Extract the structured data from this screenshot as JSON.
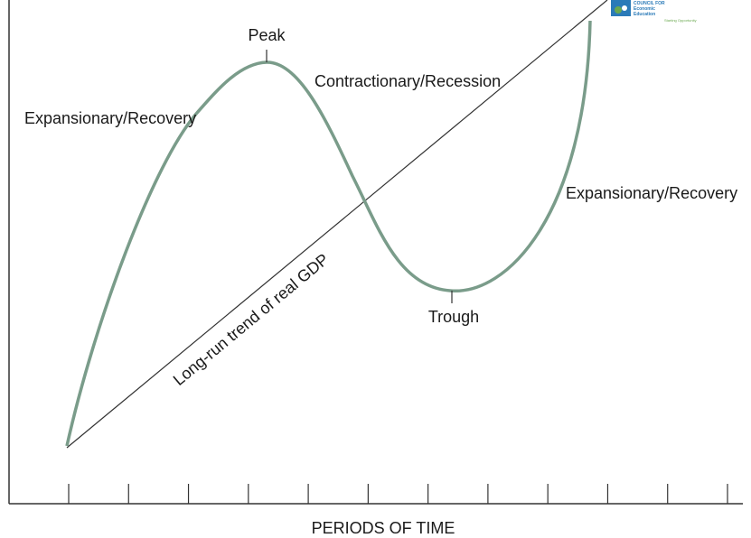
{
  "labels": {
    "peak": "Peak",
    "contraction": "Contractionary/Recession",
    "expansion_left": "Expansionary/Recovery",
    "expansion_right": "Expansionary/Recovery",
    "trough": "Trough",
    "trend": "Long-run trend of real GDP"
  },
  "axis": {
    "x_title": "PERIODS OF TIME",
    "tick_count": 12
  },
  "logo": {
    "line1": "COUNCIL FOR",
    "line2": "Economic",
    "line3": "Education",
    "tagline": "Starting Opportunity"
  },
  "colors": {
    "cycle_curve": "#7a9c8a",
    "trend_line": "#333333",
    "axis": "#333333",
    "logo_blue": "#2a7ab8",
    "logo_green": "#6aa84f"
  }
}
